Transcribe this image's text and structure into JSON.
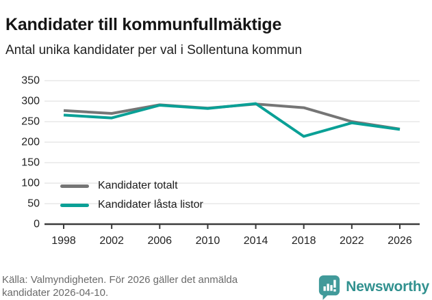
{
  "header": {
    "title": "Kandidater till kommunfullmäktige",
    "subtitle": "Antal unika kandidater per val i Sollentuna kommun"
  },
  "chart_data": {
    "type": "line",
    "categories": [
      "1998",
      "2002",
      "2006",
      "2010",
      "2014",
      "2018",
      "2022",
      "2026"
    ],
    "series": [
      {
        "name": "Kandidater totalt",
        "color": "#757575",
        "values": [
          277,
          270,
          291,
          283,
          293,
          284,
          250,
          232
        ]
      },
      {
        "name": "Kandidater låsta listor",
        "color": "#0aa096",
        "values": [
          266,
          259,
          290,
          282,
          294,
          214,
          247,
          231
        ]
      }
    ],
    "title": "Kandidater till kommunfullmäktige",
    "subtitle": "Antal unika kandidater per val i Sollentuna kommun",
    "xlabel": "",
    "ylabel": "",
    "ylim": [
      0,
      350
    ],
    "ytick_step": 50,
    "grid": true,
    "legend_position": "inside-bottom-left"
  },
  "style": {
    "grid_color": "#e2e2e2",
    "axis_color": "#3a3a3a",
    "tick_label_color": "#222222",
    "line_width": 4
  },
  "footer": {
    "source": "Källa: Valmyndigheten. För 2026 gäller det anmälda kandidater 2026-04-10.",
    "brand": "Newsworthy",
    "brand_color": "#31918f",
    "logo_icon": "bar-chart-speech-bubble"
  }
}
